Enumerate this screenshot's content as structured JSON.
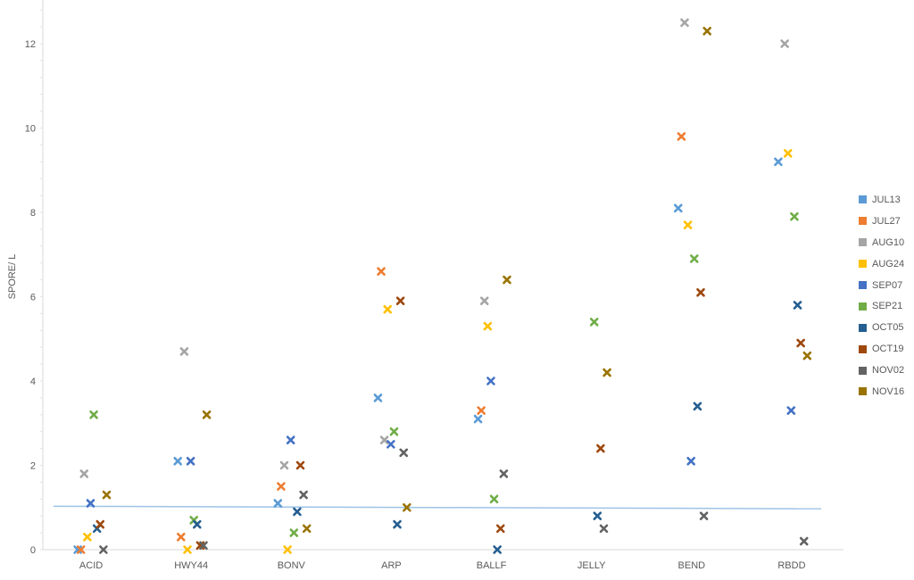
{
  "chart_data": {
    "type": "scatter",
    "title": "",
    "xlabel": "",
    "ylabel": "SPORE/ L",
    "ylim": [
      0,
      13
    ],
    "yticks": [
      0,
      2,
      4,
      6,
      8,
      10,
      12
    ],
    "grid": false,
    "legend_position": "right",
    "categories": [
      "ACID",
      "HWY44",
      "BONV",
      "ARP",
      "BALLF",
      "JELLY",
      "BEND",
      "RBDD"
    ],
    "series": [
      {
        "name": "JUL13",
        "color": "#5B9BD5",
        "values": [
          0,
          2.1,
          1.1,
          3.6,
          3.1,
          null,
          8.1,
          9.2
        ]
      },
      {
        "name": "JUL27",
        "color": "#ED7D31",
        "values": [
          0,
          0.3,
          1.5,
          6.6,
          3.3,
          null,
          9.8,
          null
        ]
      },
      {
        "name": "AUG10",
        "color": "#A5A5A5",
        "values": [
          1.8,
          4.7,
          2.0,
          2.6,
          5.9,
          null,
          12.5,
          12.0
        ]
      },
      {
        "name": "AUG24",
        "color": "#FFC000",
        "values": [
          0.3,
          0,
          0,
          5.7,
          5.3,
          null,
          7.7,
          9.4
        ]
      },
      {
        "name": "SEP07",
        "color": "#4472C4",
        "values": [
          1.1,
          2.1,
          2.6,
          2.5,
          4.0,
          null,
          2.1,
          3.3
        ]
      },
      {
        "name": "SEP21",
        "color": "#70AD47",
        "values": [
          3.2,
          0.7,
          0.4,
          2.8,
          1.2,
          5.4,
          6.9,
          7.9
        ]
      },
      {
        "name": "OCT05",
        "color": "#255E91",
        "values": [
          0.5,
          0.6,
          0.9,
          0.6,
          0,
          0.8,
          3.4,
          5.8
        ]
      },
      {
        "name": "OCT19",
        "color": "#9E480E",
        "values": [
          0.6,
          0.1,
          2.0,
          5.9,
          0.5,
          2.4,
          6.1,
          4.9
        ]
      },
      {
        "name": "NOV02",
        "color": "#636363",
        "values": [
          0,
          0.1,
          1.3,
          2.3,
          1.8,
          0.5,
          0.8,
          0.2
        ]
      },
      {
        "name": "NOV16",
        "color": "#997300",
        "values": [
          1.3,
          3.2,
          0.5,
          1.0,
          6.4,
          4.2,
          12.3,
          4.6
        ]
      }
    ],
    "annotations": [
      {
        "type": "reference_line",
        "color": "#9DC3E6",
        "from": {
          "x": "ACID-left",
          "y": 1.03
        },
        "to": {
          "x": "RBDD-right",
          "y": 0.97
        }
      }
    ]
  },
  "legend": {
    "items": [
      {
        "label": "JUL13",
        "color": "#5B9BD5"
      },
      {
        "label": "JUL27",
        "color": "#ED7D31"
      },
      {
        "label": "AUG10",
        "color": "#A5A5A5"
      },
      {
        "label": "AUG24",
        "color": "#FFC000"
      },
      {
        "label": "SEP07",
        "color": "#4472C4"
      },
      {
        "label": "SEP21",
        "color": "#70AD47"
      },
      {
        "label": "OCT05",
        "color": "#255E91"
      },
      {
        "label": "OCT19",
        "color": "#9E480E"
      },
      {
        "label": "NOV02",
        "color": "#636363"
      },
      {
        "label": "NOV16",
        "color": "#997300"
      }
    ]
  }
}
